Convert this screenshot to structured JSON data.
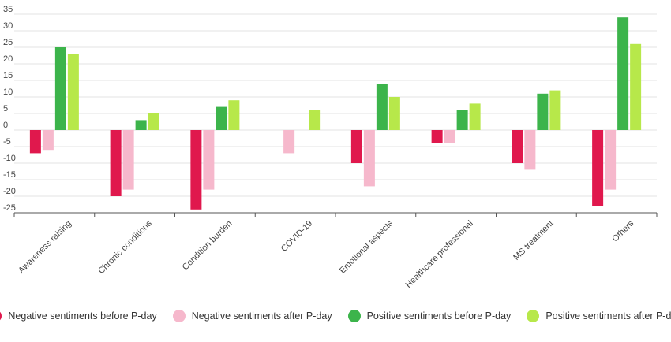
{
  "chart_data": {
    "type": "bar",
    "title": "",
    "xlabel": "",
    "ylabel": "",
    "ylim": [
      -25,
      35
    ],
    "yticks": [
      35,
      30,
      25,
      20,
      15,
      10,
      5,
      0,
      -5,
      -10,
      -15,
      -20,
      -25
    ],
    "grid": true,
    "legend_position": "bottom",
    "categories": [
      "Awareness raising",
      "Chronic conditions",
      "Condition burden",
      "COVID-19",
      "Emotional aspects",
      "Healthcare professional",
      "MS treatment",
      "Others"
    ],
    "series": [
      {
        "name": "Negative sentiments before P-day",
        "color": "#e0184d",
        "values": [
          -7,
          -20,
          -24,
          0,
          -10,
          -4,
          -10,
          -23
        ]
      },
      {
        "name": "Negative sentiments after P-day",
        "color": "#f6b8cc",
        "values": [
          -6,
          -18,
          -18,
          -7,
          -17,
          -4,
          -12,
          -18
        ]
      },
      {
        "name": "Positive sentiments before P-day",
        "color": "#3cb44b",
        "values": [
          25,
          3,
          7,
          0,
          14,
          6,
          11,
          34
        ]
      },
      {
        "name": "Positive sentiments after P-day",
        "color": "#b7e84a",
        "values": [
          23,
          5,
          9,
          6,
          10,
          8,
          12,
          26
        ]
      }
    ]
  }
}
